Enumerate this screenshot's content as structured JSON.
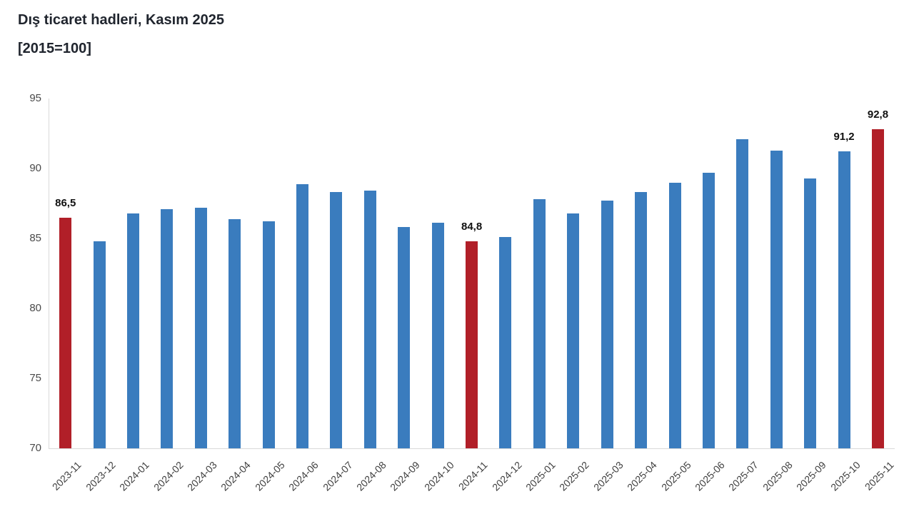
{
  "header": {
    "title": "Dış ticaret hadleri, Kasım 2025",
    "subtitle": "[2015=100]"
  },
  "colors": {
    "bar_default": "#3a7cbe",
    "bar_highlight": "#b11f28",
    "axis_line": "#d9d9d9",
    "tick_text": "#4a4a4a",
    "xlabel_text": "#3f3f3f",
    "value_label_text": "#111111",
    "title_text": "#20252e",
    "background": "#ffffff"
  },
  "chart_data": {
    "type": "bar",
    "title": "Dış ticaret hadleri, Kasım 2025",
    "subtitle": "[2015=100]",
    "xlabel": "",
    "ylabel": "",
    "ylim": [
      70,
      95
    ],
    "yticks": [
      95,
      90,
      85,
      80,
      75,
      70
    ],
    "grid": false,
    "legend": false,
    "categories": [
      "2023-11",
      "2023-12",
      "2024-01",
      "2024-02",
      "2024-03",
      "2024-04",
      "2024-05",
      "2024-06",
      "2024-07",
      "2024-08",
      "2024-09",
      "2024-10",
      "2024-11",
      "2024-12",
      "2025-01",
      "2025-02",
      "2025-03",
      "2025-04",
      "2025-05",
      "2025-06",
      "2025-07",
      "2025-08",
      "2025-09",
      "2025-10",
      "2025-11"
    ],
    "values": [
      86.5,
      84.8,
      86.8,
      87.1,
      87.2,
      86.4,
      86.2,
      88.9,
      88.3,
      88.4,
      85.8,
      86.1,
      84.8,
      85.1,
      87.8,
      86.8,
      87.7,
      88.3,
      89.0,
      89.7,
      92.1,
      91.3,
      89.3,
      91.2,
      92.8
    ],
    "highlight_indices": [
      0,
      12,
      24
    ],
    "value_labels": {
      "0": "86,5",
      "12": "84,8",
      "23": "91,2",
      "24": "92,8"
    }
  }
}
